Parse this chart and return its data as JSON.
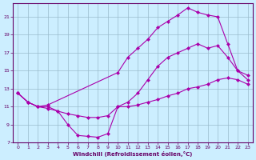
{
  "xlabel": "Windchill (Refroidissement éolien,°C)",
  "background_color": "#cceeff",
  "line_color": "#aa00aa",
  "grid_color": "#99bbcc",
  "xlim": [
    -0.5,
    23.5
  ],
  "ylim": [
    7,
    22.5
  ],
  "yticks": [
    7,
    9,
    11,
    13,
    15,
    17,
    19,
    21
  ],
  "xticks": [
    0,
    1,
    2,
    3,
    4,
    5,
    6,
    7,
    8,
    9,
    10,
    11,
    12,
    13,
    14,
    15,
    16,
    17,
    18,
    19,
    20,
    21,
    22,
    23
  ],
  "line1_x": [
    0,
    1,
    2,
    3,
    4,
    5,
    6,
    7,
    8,
    9,
    10,
    11,
    12,
    13,
    14,
    15,
    16,
    17,
    18,
    19,
    20,
    21,
    22,
    23
  ],
  "line1_y": [
    12.5,
    11.5,
    11.0,
    10.8,
    10.5,
    9.0,
    7.8,
    7.7,
    7.6,
    8.0,
    11.0,
    11.0,
    11.2,
    11.5,
    11.8,
    12.2,
    12.5,
    13.0,
    13.2,
    13.5,
    14.0,
    14.2,
    14.0,
    13.5
  ],
  "line2_x": [
    0,
    1,
    2,
    3,
    10,
    11,
    12,
    13,
    14,
    15,
    16,
    17,
    18,
    19,
    20,
    21,
    22,
    23
  ],
  "line2_y": [
    12.5,
    11.5,
    11.0,
    11.2,
    14.8,
    16.5,
    17.5,
    18.5,
    19.8,
    20.5,
    21.2,
    22.0,
    21.5,
    21.2,
    21.0,
    18.0,
    15.0,
    14.0
  ],
  "line3_x": [
    0,
    1,
    2,
    3,
    4,
    5,
    6,
    7,
    8,
    9,
    10,
    11,
    12,
    13,
    14,
    15,
    16,
    17,
    18,
    19,
    20,
    21,
    22,
    23
  ],
  "line3_y": [
    12.5,
    11.5,
    11.0,
    11.0,
    10.5,
    10.2,
    10.0,
    9.8,
    9.8,
    10.0,
    11.0,
    11.5,
    12.5,
    14.0,
    15.5,
    16.5,
    17.0,
    17.5,
    18.0,
    17.5,
    17.8,
    16.5,
    15.0,
    14.5
  ]
}
